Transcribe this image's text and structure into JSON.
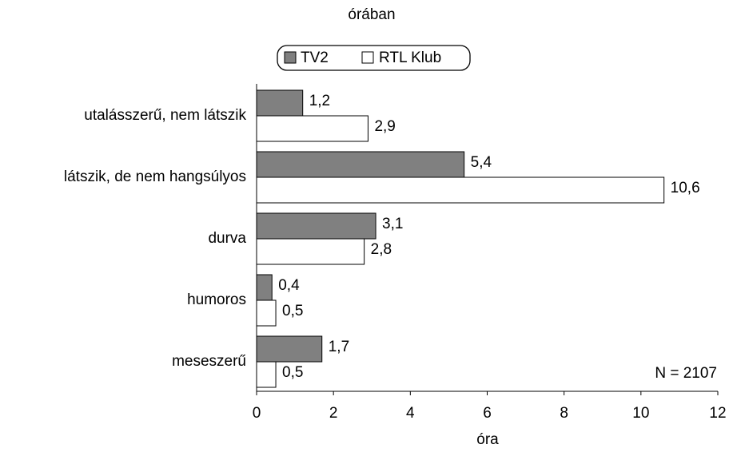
{
  "chart_data": {
    "type": "hbar",
    "subtitle": "órában",
    "categories": [
      "utalásszerű, nem látszik",
      "látszik, de nem hangsúlyos",
      "durva",
      "humoros",
      "meseszerű"
    ],
    "series": [
      {
        "name": "TV2",
        "color": "#808080",
        "values": [
          1.2,
          5.4,
          3.1,
          0.4,
          1.7
        ],
        "value_labels": [
          "1,2",
          "5,4",
          "3,1",
          "0,4",
          "1,7"
        ]
      },
      {
        "name": "RTL Klub",
        "color": "#ffffff",
        "values": [
          2.9,
          10.6,
          2.8,
          0.5,
          0.5
        ],
        "value_labels": [
          "2,9",
          "10,6",
          "2,8",
          "0,5",
          "0,5"
        ]
      }
    ],
    "xlim": [
      0,
      12
    ],
    "xticks": [
      0,
      2,
      4,
      6,
      8,
      10,
      12
    ],
    "x_label": "óra",
    "annotation": "N = 2107",
    "legend": "top"
  }
}
